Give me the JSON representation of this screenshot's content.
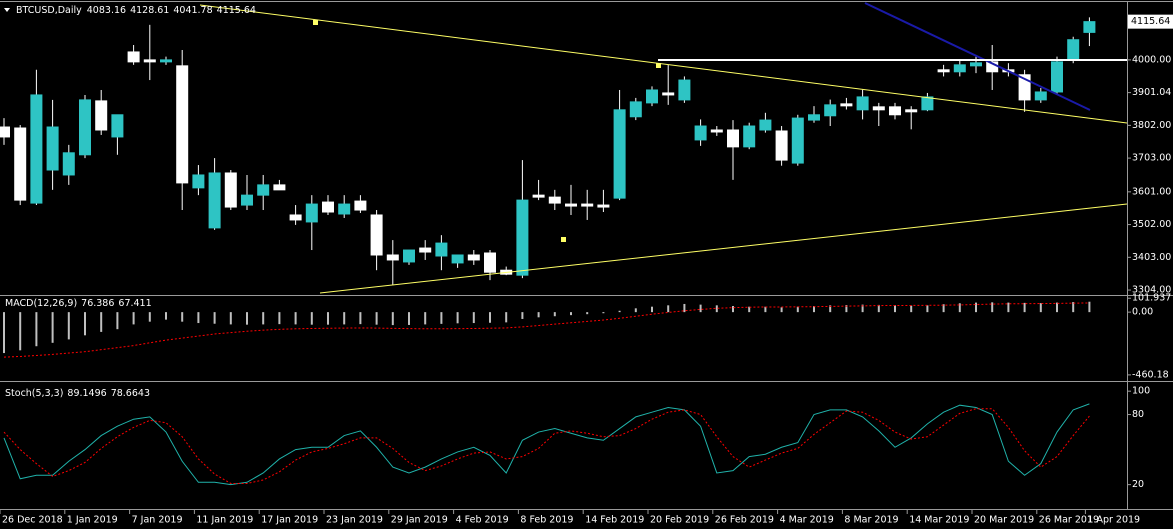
{
  "chart_data": [
    {
      "type": "candlestick",
      "title": "BTCUSD,Daily",
      "categories": [
        "26 Dec 2018",
        null,
        null,
        null,
        "1 Jan 2019",
        null,
        null,
        null,
        "7 Jan 2019",
        null,
        null,
        null,
        "11 Jan 2019",
        null,
        null,
        null,
        "17 Jan 2019",
        null,
        null,
        null,
        "23 Jan 2019",
        null,
        null,
        null,
        "29 Jan 2019",
        null,
        null,
        null,
        "4 Feb 2019",
        null,
        null,
        null,
        "8 Feb 2019",
        null,
        null,
        null,
        "14 Feb 2019",
        null,
        null,
        null,
        "20 Feb 2019",
        null,
        null,
        null,
        "26 Feb 2019",
        null,
        null,
        null,
        "4 Mar 2019",
        null,
        null,
        null,
        "8 Mar 2019",
        null,
        null,
        null,
        "14 Mar 2019",
        null,
        null,
        null,
        "20 Mar 2019",
        null,
        null,
        null,
        "26 Mar 2019",
        null,
        null,
        "1 Apr 2019"
      ],
      "open": [
        3797,
        3794,
        3567,
        3667,
        3652,
        3713,
        3876,
        3767,
        4024,
        4000,
        3994,
        3982,
        3613,
        3492,
        3658,
        3561,
        3591,
        3622,
        3531,
        3510,
        3570,
        3534,
        3573,
        3531,
        3410,
        3389,
        3431,
        3407,
        3386,
        3410,
        3416,
        3364,
        3349,
        3591,
        3585,
        3564,
        3564,
        3561,
        3582,
        3828,
        3870,
        3900,
        3879,
        3758,
        3788,
        3788,
        3737,
        3788,
        3785,
        3688,
        3818,
        3831,
        3867,
        3849,
        3858,
        3858,
        3849,
        3849,
        3970,
        3964,
        3982,
        3994,
        3970,
        3955,
        3879,
        3903,
        4000,
        4083.16
      ],
      "high": [
        3824,
        3803,
        3970,
        3879,
        3743,
        3894,
        3909,
        3834,
        4045,
        4106,
        4010,
        4030,
        3682,
        3703,
        3667,
        3652,
        3652,
        3637,
        3561,
        3591,
        3591,
        3591,
        3591,
        3546,
        3455,
        3425,
        3455,
        3470,
        3410,
        3425,
        3425,
        3375,
        3697,
        3637,
        3607,
        3622,
        3607,
        3607,
        3909,
        3885,
        3920,
        3985,
        3950,
        3820,
        3800,
        3818,
        3810,
        3840,
        3800,
        3834,
        3860,
        3880,
        3885,
        3910,
        3870,
        3870,
        3860,
        3900,
        3985,
        4000,
        4010,
        4045,
        3990,
        3970,
        3915,
        4010,
        4070,
        4128.61
      ],
      "low": [
        3743,
        3561,
        3561,
        3607,
        3622,
        3703,
        3773,
        3713,
        3985,
        3939,
        3985,
        3546,
        3591,
        3486,
        3546,
        3546,
        3546,
        3607,
        3501,
        3425,
        3531,
        3522,
        3537,
        3364,
        3319,
        3380,
        3395,
        3364,
        3371,
        3380,
        3334,
        3349,
        3340,
        3576,
        3546,
        3531,
        3516,
        3540,
        3576,
        3818,
        3860,
        3864,
        3870,
        3740,
        3770,
        3637,
        3730,
        3780,
        3680,
        3680,
        3810,
        3800,
        3850,
        3820,
        3800,
        3820,
        3790,
        3845,
        3950,
        3950,
        3960,
        3909,
        3950,
        3843,
        3870,
        3895,
        3990,
        4041.78
      ],
      "close": [
        3767,
        3576,
        3894,
        3797,
        3719,
        3879,
        3788,
        3834,
        3994,
        3994,
        4000,
        3628,
        3652,
        3658,
        3555,
        3591,
        3622,
        3607,
        3516,
        3564,
        3540,
        3564,
        3546,
        3410,
        3395,
        3425,
        3419,
        3446,
        3410,
        3395,
        3358,
        3352,
        3576,
        3585,
        3567,
        3558,
        3558,
        3555,
        3849,
        3873,
        3909,
        3894,
        3939,
        3800,
        3782,
        3737,
        3800,
        3818,
        3697,
        3824,
        3834,
        3864,
        3861,
        3888,
        3849,
        3834,
        3843,
        3888,
        3964,
        3985,
        3991,
        3964,
        3964,
        3879,
        3903,
        3994,
        4061,
        4115.64
      ],
      "up_color": "#2ec4c4",
      "down_color": "#ffffff",
      "ylim": [
        3286,
        4169
      ],
      "yticks": [
        {
          "value": 4000,
          "label": "4000.00"
        },
        3901.04,
        {
          "value": 3802,
          "label": "3802.00"
        },
        {
          "value": 3703,
          "label": "3703.00"
        },
        {
          "value": 3601,
          "label": "3601.00"
        },
        {
          "value": 3502,
          "label": "3502.00"
        },
        {
          "value": 3403,
          "label": "3403.00"
        },
        {
          "value": 3304,
          "label": "3304.00"
        }
      ]
    },
    {
      "type": "macd",
      "title": "MACD(12,26,9)",
      "values": [
        -300,
        -280,
        -250,
        -225,
        -200,
        -170,
        -145,
        -125,
        -90,
        -70,
        -55,
        -70,
        -80,
        -85,
        -90,
        -92,
        -90,
        -88,
        -90,
        -92,
        -92,
        -90,
        -88,
        -92,
        -95,
        -94,
        -90,
        -86,
        -82,
        -80,
        -78,
        -75,
        -50,
        -38,
        -30,
        -22,
        -15,
        -8,
        10,
        28,
        40,
        50,
        60,
        55,
        50,
        45,
        40,
        40,
        35,
        40,
        45,
        50,
        52,
        55,
        53,
        50,
        48,
        50,
        58,
        65,
        70,
        72,
        70,
        68,
        66,
        70,
        74,
        76.386
      ],
      "signal": [
        -330,
        -325,
        -318,
        -310,
        -300,
        -290,
        -275,
        -260,
        -245,
        -225,
        -205,
        -190,
        -175,
        -160,
        -150,
        -140,
        -132,
        -126,
        -122,
        -120,
        -118,
        -117,
        -116,
        -117,
        -119,
        -121,
        -122,
        -122,
        -121,
        -120,
        -118,
        -116,
        -108,
        -98,
        -88,
        -78,
        -68,
        -58,
        -45,
        -30,
        -15,
        -2,
        10,
        20,
        28,
        33,
        36,
        38,
        38,
        39,
        40,
        42,
        44,
        46,
        48,
        49,
        49,
        50,
        51,
        53,
        56,
        59,
        61,
        62,
        63,
        64,
        66,
        67.411
      ],
      "color": "#c0c0c0",
      "signal_color": "#ff0000",
      "ylim": [
        -505,
        111
      ],
      "yticks": [
        101.937,
        {
          "value": 0,
          "label": "0.00"
        },
        -460.18
      ]
    },
    {
      "type": "stochastic",
      "title": "Stoch(5,3,3)",
      "values": [
        60,
        25,
        28,
        28,
        40,
        50,
        62,
        70,
        76,
        78,
        65,
        40,
        22,
        22,
        20,
        22,
        30,
        42,
        50,
        52,
        52,
        62,
        66,
        52,
        35,
        30,
        35,
        42,
        48,
        52,
        45,
        30,
        58,
        65,
        68,
        64,
        60,
        58,
        68,
        78,
        82,
        86,
        84,
        70,
        30,
        32,
        44,
        46,
        52,
        56,
        80,
        84,
        84,
        78,
        66,
        52,
        60,
        72,
        82,
        88,
        86,
        80,
        40,
        28,
        38,
        65,
        84,
        89.1496
      ],
      "signal": [
        65,
        50,
        38,
        27,
        32,
        39,
        51,
        61,
        69,
        75,
        73,
        61,
        42,
        29,
        21,
        21,
        24,
        31,
        41,
        48,
        51,
        55,
        60,
        60,
        51,
        39,
        32,
        36,
        42,
        47,
        48,
        42,
        44,
        51,
        64,
        66,
        64,
        61,
        62,
        68,
        76,
        82,
        84,
        80,
        61,
        44,
        35,
        41,
        47,
        51,
        63,
        73,
        83,
        82,
        75,
        65,
        59,
        61,
        71,
        81,
        85,
        85,
        69,
        49,
        35,
        44,
        62,
        78.6643
      ],
      "color": "#20b2aa",
      "signal_color": "#ff0000",
      "ylim": [
        0,
        107
      ],
      "yticks": [
        100,
        80,
        20
      ]
    }
  ]
}
